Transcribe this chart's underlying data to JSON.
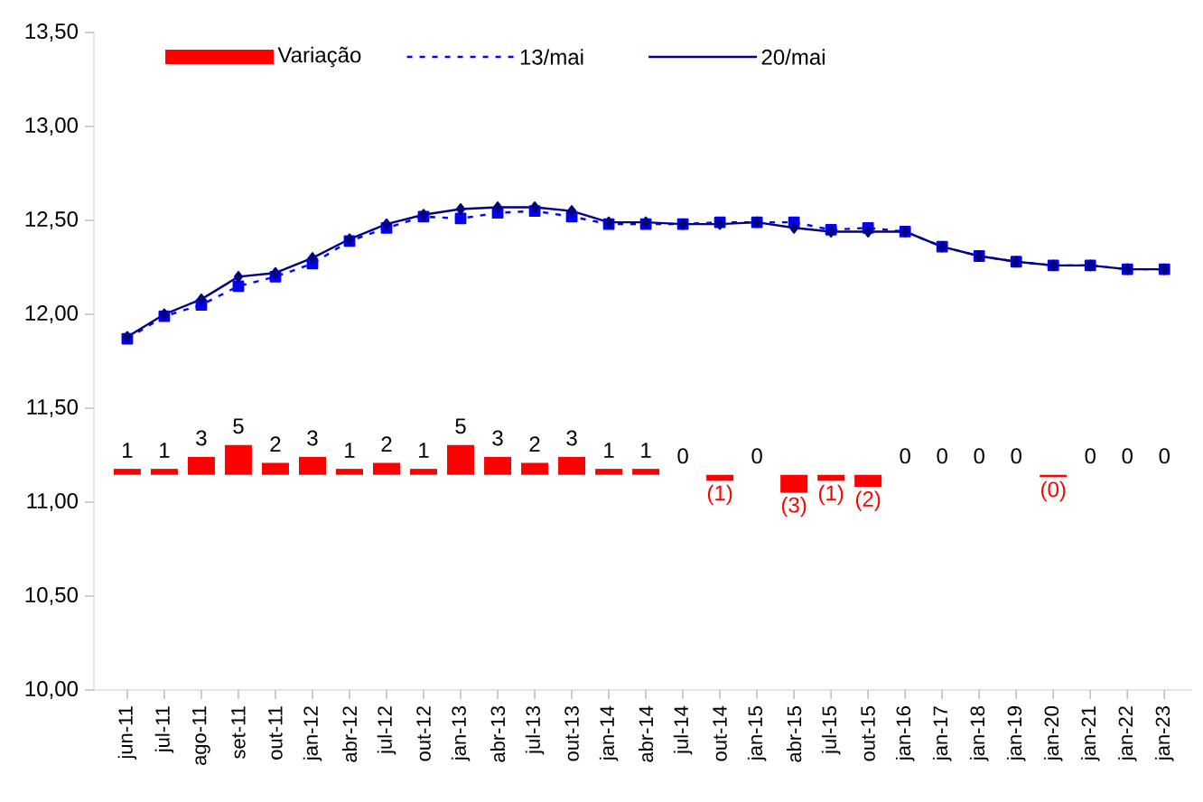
{
  "chart_data": {
    "type": "line",
    "categories": [
      "jun-11",
      "jul-11",
      "ago-11",
      "set-11",
      "out-11",
      "jan-12",
      "abr-12",
      "jul-12",
      "out-12",
      "jan-13",
      "abr-13",
      "jul-13",
      "out-13",
      "jan-14",
      "abr-14",
      "jul-14",
      "out-14",
      "jan-15",
      "abr-15",
      "jul-15",
      "out-15",
      "jan-16",
      "jan-17",
      "jan-18",
      "jan-19",
      "jan-20",
      "jan-21",
      "jan-22",
      "jan-23"
    ],
    "series": [
      {
        "name": "Variação",
        "type": "bar",
        "axis": "y2",
        "color": "#ff0000",
        "values": [
          1,
          1,
          3,
          5,
          2,
          3,
          1,
          2,
          1,
          5,
          3,
          2,
          3,
          1,
          1,
          0,
          -1,
          0,
          -3,
          -1,
          -2,
          0,
          0,
          0,
          0,
          -0.4,
          0,
          0,
          0
        ],
        "value_labels": [
          "1",
          "1",
          "3",
          "5",
          "2",
          "3",
          "1",
          "2",
          "1",
          "5",
          "3",
          "2",
          "3",
          "1",
          "1",
          "0",
          "(1)",
          "0",
          "(3)",
          "(1)",
          "(2)",
          "0",
          "0",
          "0",
          "0",
          "(0)",
          "0",
          "0",
          "0"
        ]
      },
      {
        "name": "13/mai",
        "color": "#0000ff",
        "marker": "square",
        "line_style": "dashed",
        "values": [
          11.87,
          11.99,
          12.05,
          12.15,
          12.2,
          12.27,
          12.39,
          12.46,
          12.52,
          12.51,
          12.54,
          12.55,
          12.52,
          12.48,
          12.48,
          12.48,
          12.49,
          12.49,
          12.49,
          12.45,
          12.46,
          12.44,
          12.36,
          12.31,
          12.28,
          12.26,
          12.26,
          12.24,
          12.24
        ]
      },
      {
        "name": "20/mai",
        "color": "#000080",
        "marker": "diamond",
        "line_style": "solid",
        "values": [
          11.88,
          12.0,
          12.08,
          12.2,
          12.22,
          12.3,
          12.4,
          12.48,
          12.53,
          12.56,
          12.57,
          12.57,
          12.55,
          12.49,
          12.49,
          12.48,
          12.48,
          12.49,
          12.46,
          12.44,
          12.44,
          12.44,
          12.36,
          12.31,
          12.28,
          12.26,
          12.26,
          12.24,
          12.24
        ]
      }
    ],
    "ylim": [
      10,
      13.5
    ],
    "yticks": [
      {
        "value": 10,
        "label": "10,00"
      },
      {
        "value": 10.5,
        "label": "10,50"
      },
      {
        "value": 11,
        "label": "11,00"
      },
      {
        "value": 11.5,
        "label": "11,50"
      },
      {
        "value": 12,
        "label": "12,00"
      },
      {
        "value": 12.5,
        "label": "12,50"
      },
      {
        "value": 13,
        "label": "13,00"
      },
      {
        "value": 13.5,
        "label": "13,50"
      }
    ],
    "y2lim": [
      -36,
      74
    ],
    "tick_labels": "xy",
    "grid": false,
    "legend": "top"
  }
}
